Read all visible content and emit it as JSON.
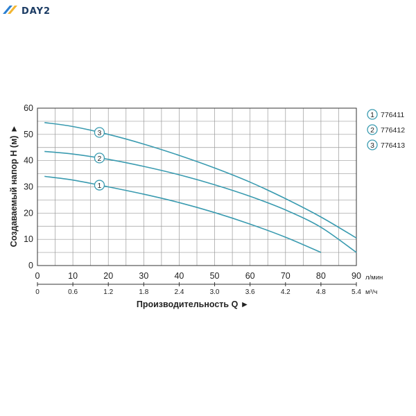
{
  "logo": {
    "text": "DAY2",
    "color_a": "#2b7fd1",
    "color_b": "#f2b632"
  },
  "chart_data": {
    "type": "line",
    "xlabel": "Производительность Q ►",
    "ylabel": "Создаваемый напор Н (м) ►",
    "xlim": [
      0,
      90
    ],
    "ylim": [
      0,
      60
    ],
    "x_ticks": [
      0,
      10,
      20,
      30,
      40,
      50,
      60,
      70,
      80,
      90
    ],
    "y_ticks": [
      0,
      10,
      20,
      30,
      40,
      50,
      60
    ],
    "x_unit": "л/мин",
    "secondary_x_ticks": [
      {
        "at": 0,
        "label": "0"
      },
      {
        "at": 10,
        "label": "0.6"
      },
      {
        "at": 20,
        "label": "1.2"
      },
      {
        "at": 30,
        "label": "1.8"
      },
      {
        "at": 40,
        "label": "2.4"
      },
      {
        "at": 50,
        "label": "3.0"
      },
      {
        "at": 60,
        "label": "3.6"
      },
      {
        "at": 70,
        "label": "4.2"
      },
      {
        "at": 80,
        "label": "4.8"
      },
      {
        "at": 90,
        "label": "5.4"
      }
    ],
    "secondary_x_unit": "м³/ч",
    "grid": true,
    "legend_position": "right",
    "series_color": "#3a9bb0",
    "series": [
      {
        "marker": "1",
        "name": "776411",
        "label_at_x": 17.5,
        "x": [
          2,
          10,
          20,
          30,
          40,
          50,
          60,
          70,
          80
        ],
        "y": [
          34,
          32.6,
          30,
          27.2,
          24,
          20.2,
          15.8,
          10.8,
          5
        ]
      },
      {
        "marker": "2",
        "name": "776412",
        "label_at_x": 17.5,
        "x": [
          2,
          10,
          20,
          30,
          40,
          50,
          60,
          70,
          80,
          90
        ],
        "y": [
          43.5,
          42.5,
          40.5,
          37.8,
          34.6,
          30.8,
          26.4,
          21.2,
          14.6,
          5
        ]
      },
      {
        "marker": "3",
        "name": "776413",
        "label_at_x": 17.5,
        "x": [
          2,
          10,
          20,
          30,
          40,
          50,
          60,
          70,
          80,
          90
        ],
        "y": [
          54.5,
          53,
          50,
          46.3,
          42,
          37.2,
          31.8,
          25.5,
          18.5,
          10.5
        ]
      }
    ]
  }
}
